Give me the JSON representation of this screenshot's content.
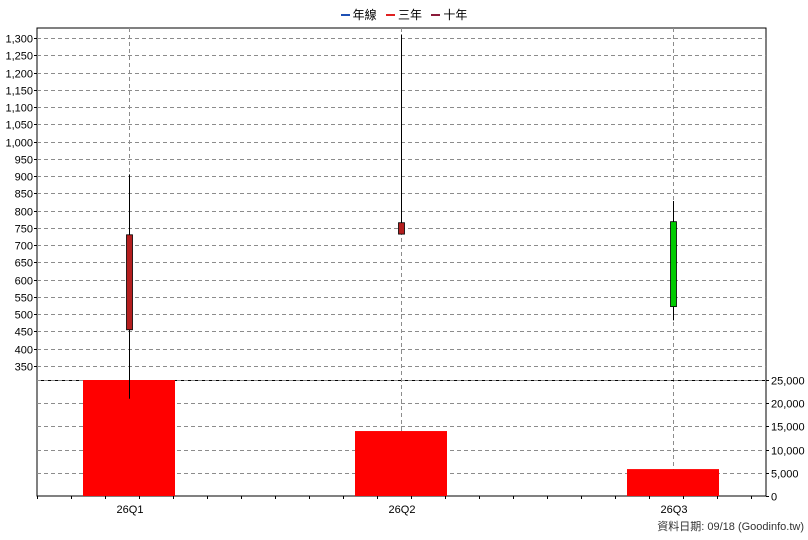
{
  "legend": [
    {
      "label": "年線",
      "color": "#1e50b4"
    },
    {
      "label": "三年",
      "color": "#e02020"
    },
    {
      "label": "十年",
      "color": "#8b1a3a"
    }
  ],
  "footer": "資料日期: 09/18  (Goodinfo.tw)",
  "chart_data": {
    "type": "candlestick+bar",
    "categories": [
      "26Q1",
      "26Q2",
      "26Q3"
    ],
    "price": {
      "ylim": [
        250,
        1350
      ],
      "ticks": [
        350,
        400,
        450,
        500,
        550,
        600,
        650,
        700,
        750,
        800,
        850,
        900,
        950,
        1000,
        1050,
        1100,
        1150,
        1200,
        1250,
        1300
      ],
      "tick_labels": [
        "350",
        "400",
        "450",
        "500",
        "550",
        "600",
        "650",
        "700",
        "750",
        "800",
        "850",
        "900",
        "950",
        "1,000",
        "1,050",
        "1,100",
        "1,150",
        "1,200",
        "1,250",
        "1,300"
      ],
      "candles": [
        {
          "open": 455,
          "close": 730,
          "high": 905,
          "low": 255,
          "color": "#b41e1e"
        },
        {
          "open": 732,
          "close": 765,
          "high": 1310,
          "low": 732,
          "color": "#b41e1e"
        },
        {
          "open": 768,
          "close": 522,
          "high": 828,
          "low": 482,
          "color": "#00cc00"
        }
      ]
    },
    "volume": {
      "ylim": [
        0,
        25000
      ],
      "ticks": [
        0,
        5000,
        10000,
        15000,
        20000,
        25000
      ],
      "tick_labels": [
        "0",
        "5,000",
        "10,000",
        "15,000",
        "20,000",
        "25,000"
      ],
      "values": [
        25000,
        14000,
        5800
      ],
      "color": "#ff0000"
    },
    "grid": true
  }
}
